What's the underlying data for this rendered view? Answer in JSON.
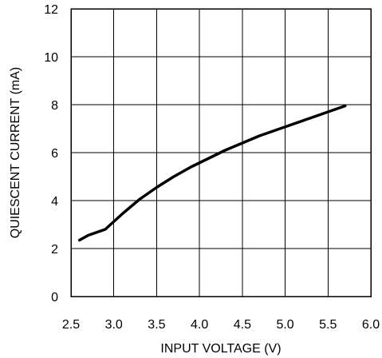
{
  "chart_data": {
    "type": "line",
    "title": "",
    "xlabel": "INPUT VOLTAGE (V)",
    "ylabel": "QUIESCENT CURRENT (mA)",
    "xlim": [
      2.5,
      6.0
    ],
    "ylim": [
      0,
      12
    ],
    "x_ticks": [
      "2.5",
      "3.0",
      "3.5",
      "4.0",
      "4.5",
      "5.0",
      "5.5",
      "6.0"
    ],
    "y_ticks": [
      "0",
      "2",
      "4",
      "6",
      "8",
      "10",
      "12"
    ],
    "grid": true,
    "legend": "none",
    "series": [
      {
        "x": [
          2.6,
          2.7,
          2.9,
          3.1,
          3.3,
          3.5,
          3.7,
          3.9,
          4.1,
          4.3,
          4.5,
          4.7,
          4.9,
          5.1,
          5.3,
          5.5,
          5.7
        ],
        "y": [
          2.35,
          2.55,
          2.8,
          3.45,
          4.05,
          4.55,
          5.0,
          5.4,
          5.75,
          6.1,
          6.4,
          6.7,
          6.95,
          7.2,
          7.45,
          7.7,
          7.95
        ]
      }
    ]
  }
}
